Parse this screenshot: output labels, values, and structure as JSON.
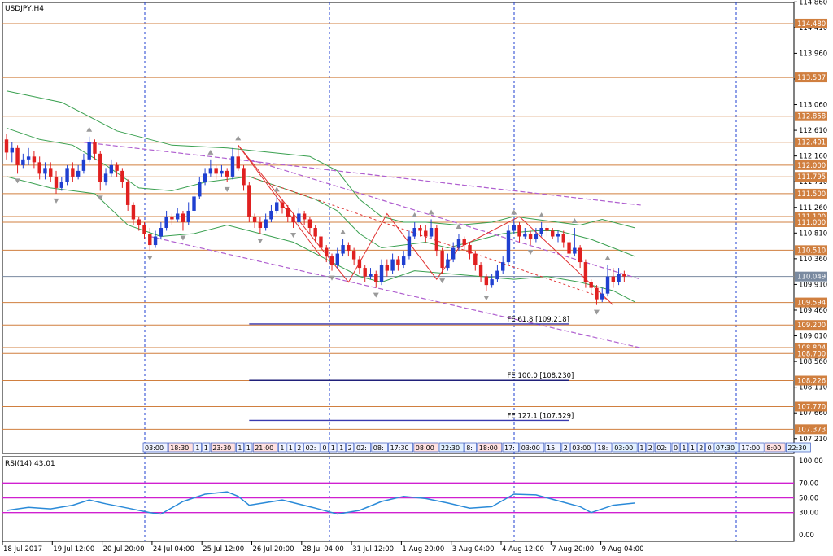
{
  "header": {
    "symbol": "USDJPY,H4"
  },
  "rsi_panel": {
    "title": "RSI(14) 43.01",
    "ticks": [
      "100.00",
      "70.00",
      "50.00",
      "30.00",
      "0.00"
    ]
  },
  "levels": [
    {
      "label": "114.480",
      "kind": "resistance"
    },
    {
      "label": "113.537",
      "kind": "resistance"
    },
    {
      "label": "112.858",
      "kind": "resistance"
    },
    {
      "label": "112.401",
      "kind": "resistance"
    },
    {
      "label": "112.000",
      "kind": "resistance"
    },
    {
      "label": "111.795",
      "kind": "resistance"
    },
    {
      "label": "111.500",
      "kind": "resistance"
    },
    {
      "label": "111.100",
      "kind": "resistance"
    },
    {
      "label": "111.000",
      "kind": "resistance"
    },
    {
      "label": "110.510",
      "kind": "resistance"
    },
    {
      "label": "110.049",
      "kind": "current"
    },
    {
      "label": "109.594",
      "kind": "support"
    },
    {
      "label": "109.200",
      "kind": "support"
    },
    {
      "label": "108.804",
      "kind": "support"
    },
    {
      "label": "108.700",
      "kind": "support"
    },
    {
      "label": "108.226",
      "kind": "support"
    },
    {
      "label": "107.770",
      "kind": "support"
    },
    {
      "label": "107.373",
      "kind": "support"
    }
  ],
  "fe_labels": [
    "FE 61.8 [109.218]",
    "FE 100.0 [108.230]",
    "FE 127.1 [107.529]"
  ],
  "session_labels": [
    "03:00",
    "18:30",
    "1",
    "1",
    "23:30",
    "1",
    "1",
    "21:00",
    "1",
    "1",
    "2",
    "02:",
    "0",
    "1",
    "1",
    "2",
    "02:",
    "08:",
    "17:30",
    "08:00",
    "22:30",
    "8:",
    "18:00",
    "17:",
    "03:00",
    "15:",
    "2",
    "03:00",
    "18:",
    "03:00",
    "1",
    "2",
    "02:",
    "0",
    "1",
    "1",
    "2",
    "0",
    "07:30",
    "17:00",
    "8:00",
    "22:30"
  ],
  "colors": {
    "bull": "#1f3fd0",
    "bear": "#e02020",
    "level": "#d07f3f",
    "current": "#7a8aa0",
    "ma": "#3aa050",
    "channel": "#b060d0",
    "fib": "#e03030",
    "rsi": "#2a8ad8",
    "rsi_band": "#d020d0"
  },
  "chart_data": {
    "type": "candlestick",
    "symbol": "USDJPY",
    "timeframe": "H4",
    "ylim": [
      106.95,
      114.85
    ],
    "y_ticks": [
      "114.860",
      "114.410",
      "113.960",
      "113.510",
      "113.060",
      "112.610",
      "112.160",
      "111.710",
      "111.260",
      "110.810",
      "110.360",
      "109.910",
      "109.460",
      "109.010",
      "108.560",
      "108.110",
      "107.660",
      "107.210"
    ],
    "x_ticks": [
      "18 Jul 2017",
      "19 Jul 12:00",
      "20 Jul 20:00",
      "24 Jul 04:00",
      "25 Jul 12:00",
      "26 Jul 20:00",
      "28 Jul 04:00",
      "31 Jul 12:00",
      "1 Aug 20:00",
      "3 Aug 04:00",
      "4 Aug 12:00",
      "7 Aug 20:00",
      "9 Aug 04:00"
    ],
    "candles": [
      [
        112.45,
        112.22,
        112.55,
        112.1
      ],
      [
        112.22,
        112.3,
        112.4,
        112.05
      ],
      [
        112.3,
        112.0,
        112.35,
        111.85
      ],
      [
        112.0,
        112.1,
        112.2,
        111.95
      ],
      [
        112.1,
        112.15,
        112.3,
        112.0
      ],
      [
        112.15,
        112.05,
        112.25,
        111.95
      ],
      [
        112.05,
        111.85,
        112.15,
        111.75
      ],
      [
        111.85,
        111.95,
        112.05,
        111.75
      ],
      [
        111.95,
        111.8,
        112.05,
        111.7
      ],
      [
        111.8,
        111.6,
        111.9,
        111.5
      ],
      [
        111.6,
        111.7,
        111.8,
        111.55
      ],
      [
        111.7,
        111.95,
        112.0,
        111.65
      ],
      [
        111.95,
        111.8,
        112.05,
        111.7
      ],
      [
        111.8,
        111.9,
        112.0,
        111.75
      ],
      [
        111.9,
        112.1,
        112.2,
        111.85
      ],
      [
        112.1,
        112.4,
        112.5,
        112.05
      ],
      [
        112.4,
        112.2,
        112.45,
        112.1
      ],
      [
        112.2,
        111.7,
        112.25,
        111.55
      ],
      [
        111.7,
        111.85,
        111.95,
        111.65
      ],
      [
        111.85,
        112.0,
        112.1,
        111.8
      ],
      [
        112.0,
        111.9,
        112.05,
        111.8
      ],
      [
        111.9,
        111.7,
        111.95,
        111.6
      ],
      [
        111.7,
        111.3,
        111.75,
        111.2
      ],
      [
        111.3,
        111.05,
        111.35,
        110.95
      ],
      [
        111.05,
        110.95,
        111.1,
        110.85
      ],
      [
        110.95,
        110.8,
        111.0,
        110.7
      ],
      [
        110.8,
        110.6,
        110.9,
        110.5
      ],
      [
        110.6,
        110.75,
        110.85,
        110.55
      ],
      [
        110.75,
        110.9,
        111.0,
        110.7
      ],
      [
        110.9,
        111.1,
        111.2,
        110.85
      ],
      [
        111.1,
        111.05,
        111.15,
        110.95
      ],
      [
        111.05,
        111.15,
        111.25,
        111.0
      ],
      [
        111.15,
        111.0,
        111.2,
        110.85
      ],
      [
        111.0,
        111.2,
        111.35,
        110.95
      ],
      [
        111.2,
        111.45,
        111.55,
        111.15
      ],
      [
        111.45,
        111.7,
        111.8,
        111.4
      ],
      [
        111.7,
        111.85,
        111.95,
        111.65
      ],
      [
        111.85,
        111.95,
        112.1,
        111.8
      ],
      [
        111.95,
        111.85,
        112.0,
        111.75
      ],
      [
        111.85,
        111.9,
        112.0,
        111.8
      ],
      [
        111.9,
        111.8,
        111.95,
        111.7
      ],
      [
        111.8,
        112.15,
        112.3,
        111.75
      ],
      [
        112.15,
        111.95,
        112.35,
        111.9
      ],
      [
        111.95,
        111.65,
        112.0,
        111.55
      ],
      [
        111.65,
        111.1,
        111.7,
        111.0
      ],
      [
        111.1,
        111.0,
        111.15,
        110.9
      ],
      [
        111.0,
        110.9,
        111.1,
        110.8
      ],
      [
        110.9,
        111.05,
        111.15,
        110.85
      ],
      [
        111.05,
        111.2,
        111.3,
        111.0
      ],
      [
        111.2,
        111.35,
        111.45,
        111.15
      ],
      [
        111.35,
        111.25,
        111.4,
        111.15
      ],
      [
        111.25,
        111.1,
        111.3,
        111.0
      ],
      [
        111.1,
        111.0,
        111.15,
        110.9
      ],
      [
        111.0,
        111.15,
        111.25,
        110.95
      ],
      [
        111.15,
        111.05,
        111.2,
        110.95
      ],
      [
        111.05,
        110.9,
        111.1,
        110.8
      ],
      [
        110.9,
        110.75,
        110.95,
        110.65
      ],
      [
        110.75,
        110.55,
        110.8,
        110.45
      ],
      [
        110.55,
        110.4,
        110.6,
        110.3
      ],
      [
        110.4,
        110.25,
        110.45,
        110.15
      ],
      [
        110.25,
        110.45,
        110.55,
        110.2
      ],
      [
        110.45,
        110.6,
        110.7,
        110.4
      ],
      [
        110.6,
        110.5,
        110.65,
        110.4
      ],
      [
        110.5,
        110.35,
        110.55,
        110.25
      ],
      [
        110.35,
        110.2,
        110.4,
        110.1
      ],
      [
        110.2,
        110.05,
        110.25,
        109.95
      ],
      [
        110.05,
        110.1,
        110.2,
        110.0
      ],
      [
        110.1,
        109.95,
        110.15,
        109.85
      ],
      [
        109.95,
        110.25,
        110.35,
        109.9
      ],
      [
        110.25,
        110.15,
        110.35,
        110.05
      ],
      [
        110.15,
        110.35,
        110.45,
        110.1
      ],
      [
        110.35,
        110.25,
        110.4,
        110.15
      ],
      [
        110.25,
        110.4,
        110.5,
        110.2
      ],
      [
        110.4,
        110.75,
        110.85,
        110.35
      ],
      [
        110.75,
        110.9,
        111.0,
        110.7
      ],
      [
        110.9,
        110.85,
        110.95,
        110.75
      ],
      [
        110.85,
        110.75,
        110.95,
        110.65
      ],
      [
        110.75,
        110.9,
        111.05,
        110.7
      ],
      [
        110.9,
        110.5,
        110.95,
        110.4
      ],
      [
        110.5,
        110.2,
        110.55,
        110.1
      ],
      [
        110.2,
        110.35,
        110.45,
        110.15
      ],
      [
        110.35,
        110.55,
        110.65,
        110.3
      ],
      [
        110.55,
        110.7,
        110.8,
        110.5
      ],
      [
        110.7,
        110.6,
        110.75,
        110.5
      ],
      [
        110.6,
        110.45,
        110.65,
        110.35
      ],
      [
        110.45,
        110.25,
        110.5,
        110.15
      ],
      [
        110.25,
        110.05,
        110.3,
        109.95
      ],
      [
        110.05,
        109.9,
        110.1,
        109.8
      ],
      [
        109.9,
        110.0,
        110.1,
        109.85
      ],
      [
        110.0,
        110.15,
        110.25,
        109.95
      ],
      [
        110.15,
        110.3,
        110.4,
        110.1
      ],
      [
        110.3,
        110.85,
        110.95,
        110.25
      ],
      [
        110.85,
        110.95,
        111.05,
        110.8
      ],
      [
        110.95,
        110.75,
        111.0,
        110.65
      ],
      [
        110.75,
        110.8,
        110.9,
        110.7
      ],
      [
        110.8,
        110.7,
        110.85,
        110.6
      ],
      [
        110.7,
        110.8,
        110.9,
        110.65
      ],
      [
        110.8,
        110.9,
        111.0,
        110.75
      ],
      [
        110.9,
        110.85,
        110.95,
        110.75
      ],
      [
        110.85,
        110.75,
        110.9,
        110.7
      ],
      [
        110.75,
        110.8,
        110.85,
        110.65
      ],
      [
        110.8,
        110.65,
        110.85,
        110.55
      ],
      [
        110.65,
        110.45,
        110.7,
        110.35
      ],
      [
        110.45,
        110.55,
        110.9,
        110.4
      ],
      [
        110.55,
        110.3,
        110.6,
        110.2
      ],
      [
        110.3,
        109.95,
        110.35,
        109.85
      ],
      [
        109.95,
        109.85,
        110.0,
        109.75
      ],
      [
        109.85,
        109.65,
        109.9,
        109.55
      ],
      [
        109.65,
        109.75,
        109.85,
        109.6
      ],
      [
        109.75,
        110.05,
        110.25,
        109.7
      ],
      [
        110.05,
        109.95,
        110.2,
        109.85
      ],
      [
        109.95,
        110.1,
        110.2,
        109.9
      ],
      [
        110.1,
        110.05,
        110.15,
        109.95
      ]
    ],
    "ma_upper": [
      [
        0,
        113.3
      ],
      [
        10,
        113.1
      ],
      [
        20,
        112.6
      ],
      [
        30,
        112.35
      ],
      [
        40,
        112.3
      ],
      [
        50,
        112.2
      ],
      [
        55,
        112.15
      ],
      [
        60,
        111.9
      ],
      [
        64,
        111.4
      ],
      [
        68,
        111.1
      ],
      [
        72,
        111.0
      ],
      [
        76,
        111.0
      ],
      [
        82,
        110.95
      ],
      [
        88,
        111.0
      ],
      [
        92,
        111.1
      ],
      [
        96,
        111.05
      ],
      [
        100,
        111.0
      ],
      [
        104,
        110.95
      ],
      [
        108,
        111.05
      ],
      [
        114,
        110.9
      ]
    ],
    "ma_mid": [
      [
        0,
        112.65
      ],
      [
        6,
        112.45
      ],
      [
        12,
        112.35
      ],
      [
        18,
        112.0
      ],
      [
        24,
        111.6
      ],
      [
        30,
        111.55
      ],
      [
        36,
        111.7
      ],
      [
        40,
        111.75
      ],
      [
        44,
        111.8
      ],
      [
        50,
        111.6
      ],
      [
        56,
        111.4
      ],
      [
        60,
        111.2
      ],
      [
        64,
        110.8
      ],
      [
        68,
        110.55
      ],
      [
        72,
        110.6
      ],
      [
        76,
        110.65
      ],
      [
        80,
        110.55
      ],
      [
        84,
        110.65
      ],
      [
        90,
        110.8
      ],
      [
        96,
        110.85
      ],
      [
        100,
        110.85
      ],
      [
        106,
        110.7
      ],
      [
        110,
        110.55
      ],
      [
        114,
        110.4
      ]
    ],
    "ma_lower": [
      [
        0,
        111.8
      ],
      [
        8,
        111.6
      ],
      [
        16,
        111.5
      ],
      [
        22,
        110.95
      ],
      [
        28,
        110.75
      ],
      [
        34,
        110.8
      ],
      [
        40,
        110.95
      ],
      [
        46,
        110.8
      ],
      [
        52,
        110.65
      ],
      [
        58,
        110.35
      ],
      [
        64,
        110.05
      ],
      [
        68,
        109.95
      ],
      [
        74,
        110.15
      ],
      [
        80,
        110.1
      ],
      [
        86,
        110.05
      ],
      [
        92,
        110.0
      ],
      [
        98,
        110.05
      ],
      [
        104,
        109.95
      ],
      [
        110,
        109.8
      ],
      [
        114,
        109.6
      ]
    ],
    "channel_upper": [
      [
        14,
        112.4
      ],
      [
        115,
        111.3
      ]
    ],
    "channel_upper2": [
      [
        44,
        112.1
      ],
      [
        115,
        110.0
      ]
    ],
    "channel_lower": [
      [
        26,
        110.75
      ],
      [
        115,
        108.8
      ]
    ],
    "zigzag": [
      [
        42,
        112.35
      ],
      [
        62,
        109.95
      ],
      [
        69,
        111.15
      ],
      [
        78,
        110.0
      ],
      [
        82,
        110.55
      ],
      [
        93,
        111.1
      ],
      [
        110,
        109.55
      ]
    ],
    "fib_line": [
      [
        42,
        112.35
      ],
      [
        57,
        110.4
      ]
    ],
    "fib_dotted": [
      [
        44,
        111.8
      ],
      [
        109,
        109.65
      ]
    ],
    "fe_levels": [
      {
        "label": "FE 61.8 [109.218]",
        "price": 109.218,
        "from": 44,
        "to": 102
      },
      {
        "label": "FE 100.0 [108.230]",
        "price": 108.23,
        "from": 44,
        "to": 102
      },
      {
        "label": "FE 127.1 [107.529]",
        "price": 107.529,
        "from": 44,
        "to": 102
      }
    ],
    "rsi": {
      "name": "RSI(14)",
      "last": 43.01,
      "ylim": [
        0,
        100
      ],
      "bands": [
        70,
        50,
        30
      ],
      "values": [
        [
          0,
          33
        ],
        [
          4,
          37
        ],
        [
          8,
          35
        ],
        [
          12,
          40
        ],
        [
          15,
          47
        ],
        [
          18,
          42
        ],
        [
          22,
          36
        ],
        [
          26,
          30
        ],
        [
          28,
          28
        ],
        [
          32,
          45
        ],
        [
          36,
          55
        ],
        [
          40,
          58
        ],
        [
          42,
          52
        ],
        [
          44,
          40
        ],
        [
          50,
          47
        ],
        [
          56,
          36
        ],
        [
          60,
          28
        ],
        [
          64,
          33
        ],
        [
          68,
          45
        ],
        [
          72,
          52
        ],
        [
          76,
          49
        ],
        [
          80,
          43
        ],
        [
          84,
          36
        ],
        [
          88,
          38
        ],
        [
          92,
          55
        ],
        [
          96,
          54
        ],
        [
          100,
          46
        ],
        [
          104,
          38
        ],
        [
          106,
          30
        ],
        [
          110,
          40
        ],
        [
          114,
          43
        ]
      ]
    }
  }
}
